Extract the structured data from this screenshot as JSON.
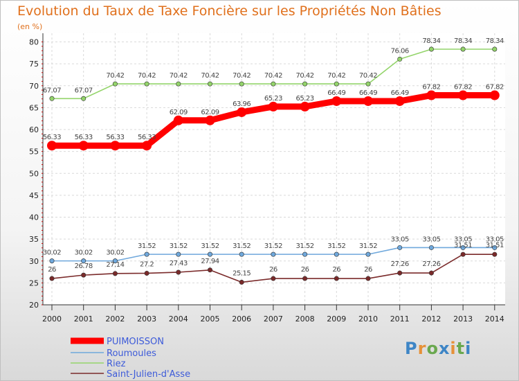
{
  "chart_data": {
    "type": "line",
    "title": "Evolution du Taux de Taxe Foncière sur les Propriétés Non Bâties",
    "ylabel": "(en %)",
    "xlabel": "",
    "ylim": [
      20,
      80
    ],
    "yticks": [
      20,
      25,
      30,
      35,
      40,
      45,
      50,
      55,
      60,
      65,
      70,
      75,
      80
    ],
    "categories": [
      "2000",
      "2001",
      "2002",
      "2003",
      "2004",
      "2005",
      "2006",
      "2007",
      "2008",
      "2009",
      "2010",
      "2011",
      "2012",
      "2013",
      "2014"
    ],
    "grid": true,
    "legend_position": "bottom-left",
    "series": [
      {
        "name": "PUIMOISSON",
        "color": "#ff0000",
        "values": [
          56.33,
          56.33,
          56.33,
          56.33,
          62.09,
          62.09,
          63.96,
          65.23,
          65.23,
          66.49,
          66.49,
          66.49,
          67.82,
          67.82,
          67.82
        ],
        "labels": [
          "56.33",
          "56.33",
          "56.33",
          "56.33",
          "62.09",
          "62.09",
          "63.96",
          "65.23",
          "65.23",
          "66.49",
          "66.49",
          "66.49",
          "67.82",
          "67.82",
          "67.82"
        ]
      },
      {
        "name": "Roumoules",
        "color": "#6fa8dc",
        "values": [
          30.02,
          30.02,
          30.02,
          31.52,
          31.52,
          31.52,
          31.52,
          31.52,
          31.52,
          31.52,
          31.52,
          33.05,
          33.05,
          33.05,
          33.05
        ],
        "labels": [
          "30.02",
          "30.02",
          "30.02",
          "31.52",
          "31.52",
          "31.52",
          "31.52",
          "31.52",
          "31.52",
          "31.52",
          "31.52",
          "33.05",
          "33.05",
          "33.05",
          "33.05"
        ]
      },
      {
        "name": "Riez",
        "color": "#93d46a",
        "values": [
          67.07,
          67.07,
          70.42,
          70.42,
          70.42,
          70.42,
          70.42,
          70.42,
          70.42,
          70.42,
          70.42,
          76.06,
          78.34,
          78.34,
          78.34
        ],
        "labels": [
          "67.07",
          "67.07",
          "70.42",
          "70.42",
          "70.42",
          "70.42",
          "70.42",
          "70.42",
          "70.42",
          "70.42",
          "70.42",
          "76.06",
          "78.34",
          "78.34",
          "78.34"
        ]
      },
      {
        "name": "Saint-Julien-d'Asse",
        "color": "#7a2a2a",
        "values": [
          26,
          26.78,
          27.14,
          27.2,
          27.43,
          27.94,
          25.15,
          26,
          26,
          26,
          26,
          27.26,
          27.26,
          31.51,
          31.51
        ],
        "labels": [
          "26",
          "26.78",
          "27.14",
          "27.2",
          "27.43",
          "27.94",
          "25.15",
          "26",
          "26",
          "26",
          "26",
          "27.26",
          "27.26",
          "31.51",
          "31.51"
        ]
      }
    ]
  },
  "logo": {
    "text": "Proxiti",
    "letters": [
      "P",
      "r",
      "o",
      "x",
      "i",
      "t",
      "i"
    ],
    "colors": [
      "#3d85c6",
      "#e69138",
      "#6aa84f",
      "#3d85c6",
      "#e69138",
      "#6aa84f",
      "#3d85c6"
    ]
  }
}
